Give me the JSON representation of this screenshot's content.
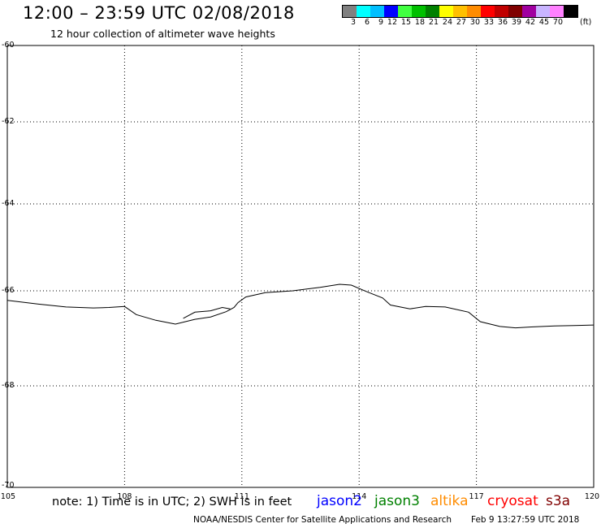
{
  "header": {
    "title": "12:00 – 23:59 UTC 02/08/2018",
    "subtitle": "12 hour collection of altimeter wave heights"
  },
  "legend": {
    "colors": [
      "#808080",
      "#00ffff",
      "#00bfff",
      "#0000ff",
      "#40ff40",
      "#00c000",
      "#008000",
      "#ffff00",
      "#ffc000",
      "#ff8c00",
      "#ff0000",
      "#c00000",
      "#800000",
      "#a000a0",
      "#c8b4ff",
      "#ff80ff",
      "#000000"
    ],
    "labels": [
      "3",
      "6",
      "9",
      "12",
      "15",
      "18",
      "21",
      "24",
      "27",
      "30",
      "33",
      "36",
      "39",
      "42",
      "45",
      "70"
    ],
    "unit": "(ft)"
  },
  "map": {
    "lat_ticks": [
      "-60",
      "-62",
      "-64",
      "-66",
      "-68",
      "-70"
    ],
    "lon_ticks": [
      "105",
      "108",
      "111",
      "114",
      "117",
      "120"
    ],
    "coast_line": [
      [
        105.0,
        -66.2
      ],
      [
        105.8,
        -66.28
      ],
      [
        106.5,
        -66.34
      ],
      [
        107.2,
        -66.36
      ],
      [
        107.6,
        -66.35
      ],
      [
        108.0,
        -66.33
      ],
      [
        108.3,
        -66.5
      ],
      [
        108.8,
        -66.62
      ],
      [
        109.3,
        -66.7
      ],
      [
        109.8,
        -66.6
      ],
      [
        110.2,
        -66.55
      ],
      [
        110.6,
        -66.44
      ],
      [
        110.8,
        -66.35
      ],
      [
        110.9,
        -66.25
      ],
      [
        111.1,
        -66.13
      ],
      [
        111.6,
        -66.04
      ],
      [
        112.3,
        -66.0
      ],
      [
        113.0,
        -65.92
      ],
      [
        113.5,
        -65.85
      ],
      [
        113.8,
        -65.87
      ],
      [
        114.2,
        -66.02
      ],
      [
        114.6,
        -66.15
      ],
      [
        114.8,
        -66.3
      ],
      [
        115.3,
        -66.38
      ],
      [
        115.7,
        -66.33
      ],
      [
        116.2,
        -66.34
      ],
      [
        116.8,
        -66.45
      ],
      [
        117.1,
        -66.65
      ],
      [
        117.6,
        -66.75
      ],
      [
        118.0,
        -66.78
      ],
      [
        118.4,
        -66.76
      ],
      [
        119.0,
        -66.74
      ],
      [
        119.5,
        -66.73
      ],
      [
        120.0,
        -66.72
      ]
    ],
    "ice_inlet": [
      [
        109.5,
        -66.58
      ],
      [
        109.8,
        -66.45
      ],
      [
        110.2,
        -66.42
      ],
      [
        110.5,
        -66.35
      ],
      [
        110.7,
        -66.38
      ]
    ]
  },
  "footer": {
    "note": "note: 1) Time is in UTC; 2) SWH is in feet",
    "satellites": [
      {
        "name": "jason2",
        "color": "#0000ff"
      },
      {
        "name": "jason3",
        "color": "#008000"
      },
      {
        "name": "altika",
        "color": "#ff8c00"
      },
      {
        "name": "cryosat",
        "color": "#ff0000"
      },
      {
        "name": "s3a",
        "color": "#800000"
      }
    ],
    "credit": "NOAA/NESDIS Center for Satellite Applications and Research",
    "timestamp": "Feb  9 13:27:59 UTC 2018"
  }
}
